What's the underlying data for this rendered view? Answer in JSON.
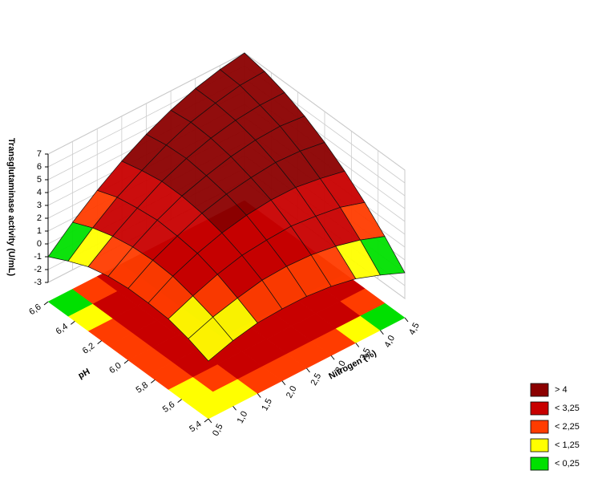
{
  "chart_data": {
    "type": "surface",
    "x_label": "Nitrogen (%)",
    "y_label": "pH",
    "z_label": "Transglutaminase activity (U/mL)",
    "x": [
      0.5,
      1.0,
      1.5,
      2.0,
      2.5,
      3.0,
      3.5,
      4.0,
      4.5
    ],
    "y": [
      5.4,
      5.55,
      5.7,
      5.85,
      6.0,
      6.15,
      6.3,
      6.45,
      6.6
    ],
    "z": [
      [
        0,
        0.6,
        1.0,
        1.1,
        1.1,
        0.9,
        0.5,
        -0.2,
        -1
      ],
      [
        0.6,
        1.3,
        1.8,
        2.2,
        2.3,
        2.2,
        1.9,
        1.4,
        0.7
      ],
      [
        1.0,
        1.8,
        2.5,
        3.0,
        3.2,
        3.3,
        3.1,
        2.8,
        2.2
      ],
      [
        1.1,
        2.2,
        3.0,
        3.6,
        4.0,
        4.2,
        4.2,
        3.9,
        3.5
      ],
      [
        1.1,
        2.3,
        3.2,
        4.0,
        4.5,
        4.8,
        5.0,
        4.9,
        4.6
      ],
      [
        0.9,
        2.2,
        3.3,
        4.2,
        4.8,
        5.3,
        5.6,
        5.7,
        5.5
      ],
      [
        0.5,
        1.9,
        3.1,
        4.2,
        5.0,
        5.6,
        6.0,
        6.2,
        6.2
      ],
      [
        -0.2,
        1.4,
        2.8,
        3.9,
        4.9,
        5.7,
        6.2,
        6.6,
        6.7
      ],
      [
        -1,
        0.7,
        2.2,
        3.5,
        4.6,
        5.5,
        6.2,
        6.7,
        7
      ]
    ],
    "xlim": [
      0.5,
      4.5
    ],
    "ylim": [
      5.4,
      6.6
    ],
    "zlim": [
      -3,
      7
    ],
    "xticks": [
      {
        "value": 0.5,
        "label": "0,5"
      },
      {
        "value": 1.0,
        "label": "1,0"
      },
      {
        "value": 1.5,
        "label": "1,5"
      },
      {
        "value": 2.0,
        "label": "2,0"
      },
      {
        "value": 2.5,
        "label": "2,5"
      },
      {
        "value": 3.0,
        "label": "3,0"
      },
      {
        "value": 3.5,
        "label": "3,5"
      },
      {
        "value": 4.0,
        "label": "4,0"
      },
      {
        "value": 4.5,
        "label": "4,5"
      }
    ],
    "yticks": [
      {
        "value": 5.4,
        "label": "5,4"
      },
      {
        "value": 5.6,
        "label": "5,6"
      },
      {
        "value": 5.8,
        "label": "5,8"
      },
      {
        "value": 6.0,
        "label": "6,0"
      },
      {
        "value": 6.2,
        "label": "6,2"
      },
      {
        "value": 6.4,
        "label": "6,4"
      },
      {
        "value": 6.6,
        "label": "6,6"
      }
    ],
    "zticks": [
      -3,
      -2,
      -1,
      0,
      1,
      2,
      3,
      4,
      5,
      6,
      7
    ],
    "grid": true,
    "legend_position": "lower right",
    "legend": [
      {
        "value": 4,
        "label": "> 4",
        "color": "#8b0000"
      },
      {
        "value": 3.25,
        "label": "< 3,25",
        "color": "#c80000"
      },
      {
        "value": 2.25,
        "label": "< 2,25",
        "color": "#ff3c00"
      },
      {
        "value": 1.25,
        "label": "< 1,25",
        "color": "#ffff00"
      },
      {
        "value": 0.25,
        "label": "< 0,25",
        "color": "#00e000"
      }
    ]
  }
}
